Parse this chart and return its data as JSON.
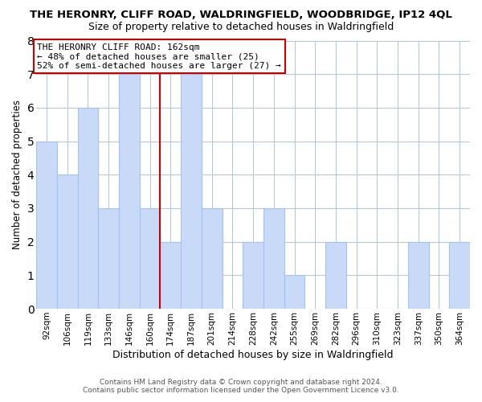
{
  "title": "THE HERONRY, CLIFF ROAD, WALDRINGFIELD, WOODBRIDGE, IP12 4QL",
  "subtitle": "Size of property relative to detached houses in Waldringfield",
  "xlabel": "Distribution of detached houses by size in Waldringfield",
  "ylabel": "Number of detached properties",
  "bar_labels": [
    "92sqm",
    "106sqm",
    "119sqm",
    "133sqm",
    "146sqm",
    "160sqm",
    "174sqm",
    "187sqm",
    "201sqm",
    "214sqm",
    "228sqm",
    "242sqm",
    "255sqm",
    "269sqm",
    "282sqm",
    "296sqm",
    "310sqm",
    "323sqm",
    "337sqm",
    "350sqm",
    "364sqm"
  ],
  "bar_values": [
    5,
    4,
    6,
    3,
    7,
    3,
    2,
    7,
    3,
    0,
    2,
    3,
    1,
    0,
    2,
    0,
    0,
    0,
    2,
    0,
    2
  ],
  "bar_color": "#c9daf8",
  "bar_edge_color": "#a4c2f4",
  "vline_x": 5.5,
  "vline_color": "#cc0000",
  "ylim": [
    0,
    8
  ],
  "yticks": [
    0,
    1,
    2,
    3,
    4,
    5,
    6,
    7,
    8
  ],
  "annotation_title": "THE HERONRY CLIFF ROAD: 162sqm",
  "annotation_line1": "← 48% of detached houses are smaller (25)",
  "annotation_line2": "52% of semi-detached houses are larger (27) →",
  "annotation_box_color": "#ffffff",
  "annotation_box_edge": "#cc0000",
  "grid_color": "#b0c4de",
  "background_color": "#ffffff",
  "footer_line1": "Contains HM Land Registry data © Crown copyright and database right 2024.",
  "footer_line2": "Contains public sector information licensed under the Open Government Licence v3.0."
}
